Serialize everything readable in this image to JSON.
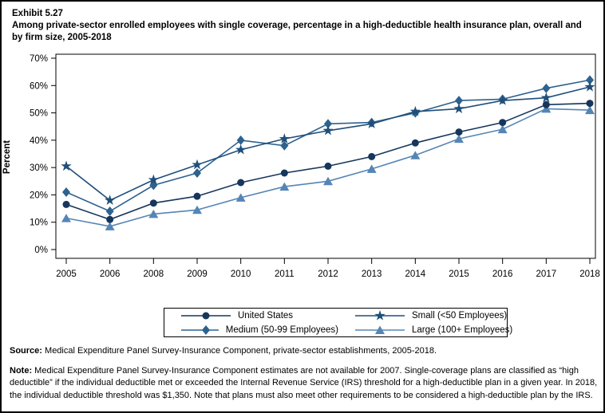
{
  "page": {
    "exhibit_label": "Exhibit 5.27",
    "title": "Among private-sector enrolled employees with single coverage, percentage in a high-deductible health insurance plan, overall and by firm size, 2005-2018"
  },
  "chart_data": {
    "type": "line",
    "title": "",
    "xlabel": "",
    "ylabel": "Percent",
    "ylim": [
      0,
      70
    ],
    "ytick_step": 10,
    "ytick_suffix": "%",
    "grid": false,
    "legend_position": "bottom",
    "categories": [
      "2005",
      "2006",
      "2008",
      "2009",
      "2010",
      "2011",
      "2012",
      "2013",
      "2014",
      "2015",
      "2016",
      "2017",
      "2018"
    ],
    "series": [
      {
        "name": "United States",
        "marker": "circle",
        "color": "#16365C",
        "values": [
          16.5,
          11,
          17,
          19.5,
          24.5,
          28,
          30.5,
          34,
          39,
          43,
          46.5,
          53,
          53.5
        ]
      },
      {
        "name": "Small (<50 Employees)",
        "marker": "star",
        "color": "#1F4E79",
        "values": [
          30.5,
          18,
          25.5,
          31,
          36.5,
          40.5,
          43.5,
          46,
          50.5,
          51.5,
          54.5,
          55.5,
          59.5
        ]
      },
      {
        "name": "Medium (50-99 Employees)",
        "marker": "diamond",
        "color": "#2D628F",
        "values": [
          21,
          14,
          23.5,
          28,
          40,
          38,
          46,
          46.5,
          50,
          54.5,
          55,
          59,
          62
        ]
      },
      {
        "name": "Large (100+ Employees)",
        "marker": "triangle",
        "color": "#5585B5",
        "values": [
          11.5,
          8.5,
          13,
          14.5,
          19,
          23,
          25,
          29.5,
          34.5,
          40.5,
          44,
          51.5,
          51
        ]
      }
    ],
    "legend_display_order": [
      0,
      1,
      2,
      3
    ],
    "draw_order": [
      2,
      3,
      0,
      1
    ]
  },
  "footnotes": {
    "source_label": "Source:",
    "source_text": " Medical Expenditure Panel Survey-Insurance Component, private-sector establishments, 2005-2018.",
    "note_label": "Note:",
    "note_text": " Medical Expenditure Panel Survey-Insurance Component estimates are not available for 2007. Single-coverage plans are classified as “high deductible” if the individual deductible met or exceeded the Internal Revenue Service (IRS) threshold for a high-deductible plan in a given year. In 2018, the individual deductible threshold was $1,350. Note that plans must also meet other requirements to be considered a high-deductible plan by the IRS."
  }
}
